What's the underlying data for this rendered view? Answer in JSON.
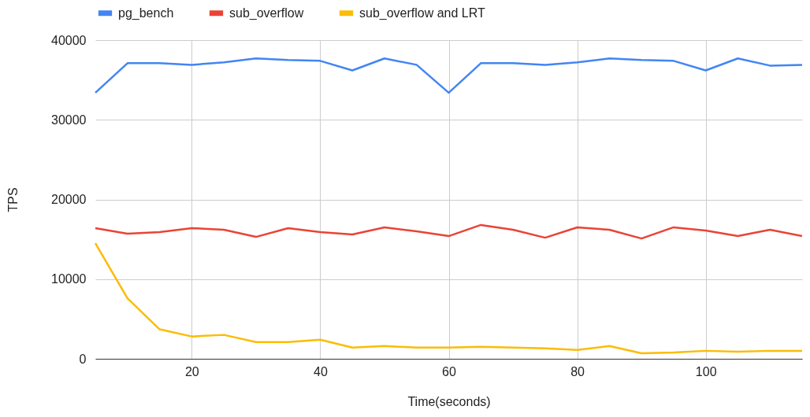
{
  "chart_data": {
    "type": "line",
    "xlabel": "Time(seconds)",
    "ylabel": "TPS",
    "x": [
      5,
      10,
      15,
      20,
      25,
      30,
      35,
      40,
      45,
      50,
      55,
      60,
      65,
      70,
      75,
      80,
      85,
      90,
      95,
      100,
      105,
      110,
      115
    ],
    "series": [
      {
        "name": "pg_bench",
        "color": "#4285f4",
        "values": [
          33400,
          37100,
          37100,
          36900,
          37200,
          37700,
          37500,
          37400,
          36200,
          37700,
          36900,
          33400,
          37100,
          37100,
          36900,
          37200,
          37700,
          37500,
          37400,
          36200,
          37700,
          36800,
          36900
        ]
      },
      {
        "name": "sub_overflow",
        "color": "#ea4335",
        "values": [
          16400,
          15700,
          15900,
          16400,
          16200,
          15300,
          16400,
          15900,
          15600,
          16500,
          16000,
          15400,
          16800,
          16200,
          15200,
          16500,
          16200,
          15100,
          16500,
          16100,
          15400,
          16200,
          15400
        ]
      },
      {
        "name": "sub_overflow and LRT",
        "color": "#fbbc04",
        "values": [
          14500,
          7600,
          3700,
          2800,
          3000,
          2100,
          2100,
          2400,
          1400,
          1600,
          1400,
          1400,
          1500,
          1400,
          1300,
          1100,
          1600,
          700,
          800,
          1000,
          900,
          1000,
          1000
        ]
      }
    ],
    "xlim": [
      5,
      115
    ],
    "xticks": [
      20,
      40,
      60,
      80,
      100
    ],
    "ylim": [
      0,
      40000
    ],
    "yticks": [
      0,
      10000,
      20000,
      30000,
      40000
    ],
    "grid": true,
    "legend": "top"
  }
}
